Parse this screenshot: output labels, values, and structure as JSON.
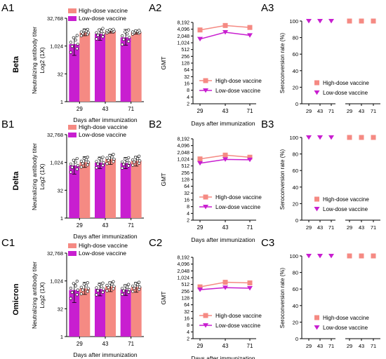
{
  "colors": {
    "high_dose": "#F58A83",
    "low_dose": "#C81ED0",
    "axis": "#000000",
    "dot_fill": "#ffffff"
  },
  "panels": {
    "A1": "A1",
    "A2": "A2",
    "A3": "A3",
    "B1": "B1",
    "B2": "B2",
    "B3": "B3",
    "C1": "C1",
    "C2": "C2",
    "C3": "C3"
  },
  "row_labels": [
    "Beta",
    "Delta",
    "Omicron"
  ],
  "chart_data": [
    {
      "panel": "A1",
      "type": "bar",
      "variant": "Beta",
      "xlabel": "Days after immunization",
      "ylabel_line1": "Neutralizing antibody titer",
      "ylabel_line2": "Log2 (1X)",
      "y_scale": "log2",
      "ylim": [
        1,
        32768
      ],
      "yticks": [
        1,
        32,
        1024,
        32768
      ],
      "ytick_labels": [
        "1",
        "32",
        "1,024",
        "32,768"
      ],
      "categories": [
        "29",
        "43",
        "71"
      ],
      "legend": {
        "position": "top",
        "entries": [
          "High-dose vaccine",
          "Low-dose vaccine"
        ]
      },
      "series": [
        {
          "name": "Low-dose vaccine",
          "color_key": "low_dose",
          "values": [
            1300,
            4700,
            3000
          ],
          "err_low": [
            320,
            2100,
            1150
          ],
          "err_high": [
            3100,
            8600,
            8100
          ]
        },
        {
          "name": "High-dose vaccine",
          "color_key": "high_dose",
          "values": [
            5400,
            6600,
            5700
          ],
          "err_low": [
            3700,
            5200,
            4500
          ],
          "err_high": [
            8700,
            8300,
            7400
          ]
        }
      ]
    },
    {
      "panel": "A2",
      "type": "line",
      "variant": "Beta",
      "xlabel": "Days after immunization",
      "ylabel": "GMT",
      "y_scale": "log2",
      "ylim": [
        2,
        8192
      ],
      "yticks": [
        2,
        4,
        8,
        16,
        32,
        64,
        128,
        256,
        512,
        1024,
        2048,
        4096,
        8192
      ],
      "ytick_labels": [
        "2",
        "4",
        "8",
        "16",
        "32",
        "64",
        "128",
        "256",
        "512",
        "1,024",
        "2,048",
        "4,096",
        "8,192"
      ],
      "x": [
        "29",
        "43",
        "71"
      ],
      "legend": {
        "position": "bottom-center",
        "entries": [
          "High-dose vaccine",
          "Low-dose vaccine"
        ]
      },
      "series": [
        {
          "name": "High-dose vaccine",
          "color_key": "high_dose",
          "marker": "square",
          "values": [
            3800,
            6000,
            4900
          ]
        },
        {
          "name": "Low-dose vaccine",
          "color_key": "low_dose",
          "marker": "triangle-down",
          "values": [
            1500,
            3000,
            2200
          ]
        }
      ]
    },
    {
      "panel": "A3",
      "type": "scatter",
      "variant": "Beta",
      "ylabel": "Seroconversion rate (%)",
      "ylim": [
        0,
        100
      ],
      "yticks": [
        0,
        20,
        40,
        60,
        80,
        100
      ],
      "ytick_labels": [
        "0",
        "20",
        "40",
        "60",
        "80",
        "100"
      ],
      "x": [
        "29",
        "43",
        "71",
        "29",
        "43",
        "71"
      ],
      "legend": {
        "position": "bottom-center",
        "entries": [
          "High-dose vaccine",
          "Low-dose vaccine"
        ]
      },
      "series": [
        {
          "name": "Low-dose vaccine",
          "color_key": "low_dose",
          "marker": "triangle-down",
          "group": 0,
          "values": [
            100,
            100,
            100
          ]
        },
        {
          "name": "High-dose vaccine",
          "color_key": "high_dose",
          "marker": "square",
          "group": 1,
          "values": [
            100,
            100,
            100
          ]
        }
      ]
    },
    {
      "panel": "B1",
      "type": "bar",
      "variant": "Delta",
      "xlabel": "Days after immunization",
      "ylabel_line1": "Neutralizing antibody titer",
      "ylabel_line2": "Log2 (1X)",
      "y_scale": "log2",
      "ylim": [
        1,
        32768
      ],
      "yticks": [
        1,
        32,
        1024,
        32768
      ],
      "ytick_labels": [
        "1",
        "32",
        "1,024",
        "32,768"
      ],
      "categories": [
        "29",
        "43",
        "71"
      ],
      "legend": {
        "position": "top",
        "entries": [
          "High-dose vaccine",
          "Low-dose vaccine"
        ]
      },
      "series": [
        {
          "name": "Low-dose vaccine",
          "color_key": "low_dose",
          "values": [
            700,
            1000,
            950
          ],
          "err_low": [
            240,
            480,
            470
          ],
          "err_high": [
            1500,
            2000,
            1900
          ]
        },
        {
          "name": "High-dose vaccine",
          "color_key": "high_dose",
          "values": [
            1050,
            1550,
            1250
          ],
          "err_low": [
            550,
            800,
            650
          ],
          "err_high": [
            2100,
            2800,
            2200
          ]
        }
      ]
    },
    {
      "panel": "B2",
      "type": "line",
      "variant": "Delta",
      "xlabel": "Days after immunization",
      "ylabel": "GMT",
      "y_scale": "log2",
      "ylim": [
        2,
        8192
      ],
      "yticks": [
        2,
        4,
        8,
        16,
        32,
        64,
        128,
        256,
        512,
        1024,
        2048,
        4096,
        8192
      ],
      "ytick_labels": [
        "2",
        "4",
        "8",
        "16",
        "32",
        "64",
        "128",
        "256",
        "512",
        "1,024",
        "2,048",
        "4,096",
        "8,192"
      ],
      "x": [
        "29",
        "43",
        "71"
      ],
      "legend": {
        "position": "bottom-center",
        "entries": [
          "High-dose vaccine",
          "Low-dose vaccine"
        ]
      },
      "series": [
        {
          "name": "High-dose vaccine",
          "color_key": "high_dose",
          "marker": "square",
          "values": [
            1050,
            1550,
            1250
          ]
        },
        {
          "name": "Low-dose vaccine",
          "color_key": "low_dose",
          "marker": "triangle-down",
          "values": [
            680,
            1000,
            960
          ]
        }
      ]
    },
    {
      "panel": "B3",
      "type": "scatter",
      "variant": "Delta",
      "ylabel": "Seroconversion rate (%)",
      "ylim": [
        0,
        100
      ],
      "yticks": [
        0,
        20,
        40,
        60,
        80,
        100
      ],
      "ytick_labels": [
        "0",
        "20",
        "40",
        "60",
        "80",
        "100"
      ],
      "x": [
        "29",
        "43",
        "71",
        "29",
        "43",
        "71"
      ],
      "legend": {
        "position": "bottom-center",
        "entries": [
          "High-dose vaccine",
          "Low-dose vaccine"
        ]
      },
      "series": [
        {
          "name": "Low-dose vaccine",
          "color_key": "low_dose",
          "marker": "triangle-down",
          "group": 0,
          "values": [
            100,
            100,
            100
          ]
        },
        {
          "name": "High-dose vaccine",
          "color_key": "high_dose",
          "marker": "square",
          "group": 1,
          "values": [
            100,
            100,
            100
          ]
        }
      ]
    },
    {
      "panel": "C1",
      "type": "bar",
      "variant": "Omicron",
      "xlabel": "Days after immunization",
      "ylabel_line1": "Neutralizing antibody titer",
      "ylabel_line2": "Log2 (1X)",
      "y_scale": "log2",
      "ylim": [
        1,
        32768
      ],
      "yticks": [
        1,
        32,
        1024,
        32768
      ],
      "ytick_labels": [
        "1",
        "32",
        "1,024",
        "32,768"
      ],
      "categories": [
        "29",
        "43",
        "71"
      ],
      "legend": {
        "position": "top",
        "entries": [
          "High-dose vaccine",
          "Low-dose vaccine"
        ]
      },
      "series": [
        {
          "name": "Low-dose vaccine",
          "color_key": "low_dose",
          "values": [
            330,
            370,
            350
          ],
          "err_low": [
            70,
            160,
            170
          ],
          "err_high": [
            720,
            780,
            650
          ]
        },
        {
          "name": "High-dose vaccine",
          "color_key": "high_dose",
          "values": [
            400,
            520,
            480
          ],
          "err_low": [
            190,
            270,
            250
          ],
          "err_high": [
            850,
            920,
            860
          ]
        }
      ]
    },
    {
      "panel": "C2",
      "type": "line",
      "variant": "Omicron",
      "xlabel": "Days after immunization",
      "ylabel": "GMT",
      "y_scale": "log2",
      "ylim": [
        2,
        8192
      ],
      "yticks": [
        2,
        4,
        8,
        16,
        32,
        64,
        128,
        256,
        512,
        1024,
        2048,
        4096,
        8192
      ],
      "ytick_labels": [
        "2",
        "4",
        "8",
        "16",
        "32",
        "64",
        "128",
        "256",
        "512",
        "1,024",
        "2,048",
        "4,096",
        "8,192"
      ],
      "x": [
        "29",
        "43",
        "71"
      ],
      "legend": {
        "position": "bottom-center",
        "entries": [
          "High-dose vaccine",
          "Low-dose vaccine"
        ]
      },
      "series": [
        {
          "name": "High-dose vaccine",
          "color_key": "high_dose",
          "marker": "square",
          "values": [
            400,
            640,
            600
          ]
        },
        {
          "name": "Low-dose vaccine",
          "color_key": "low_dose",
          "marker": "triangle-down",
          "values": [
            300,
            370,
            350
          ]
        }
      ]
    },
    {
      "panel": "C3",
      "type": "scatter",
      "variant": "Omicron",
      "ylabel": "Seroconversion rate (%)",
      "ylim": [
        0,
        100
      ],
      "yticks": [
        0,
        20,
        40,
        60,
        80,
        100
      ],
      "ytick_labels": [
        "0",
        "20",
        "40",
        "60",
        "80",
        "100"
      ],
      "x": [
        "29",
        "43",
        "71",
        "29",
        "43",
        "71"
      ],
      "legend": {
        "position": "bottom-center",
        "entries": [
          "High-dose vaccine",
          "Low-dose vaccine"
        ]
      },
      "series": [
        {
          "name": "Low-dose vaccine",
          "color_key": "low_dose",
          "marker": "triangle-down",
          "group": 0,
          "values": [
            100,
            100,
            100
          ]
        },
        {
          "name": "High-dose vaccine",
          "color_key": "high_dose",
          "marker": "square",
          "group": 1,
          "values": [
            100,
            100,
            100
          ]
        }
      ]
    }
  ]
}
